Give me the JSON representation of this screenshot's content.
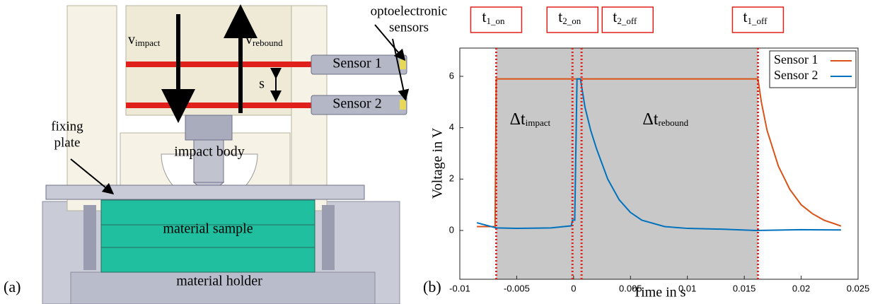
{
  "diagram": {
    "sensors_label": [
      "optoelectronic",
      "sensors"
    ],
    "v_impact": {
      "main": "v",
      "sub": "impact"
    },
    "v_rebound": {
      "main": "v",
      "sub": "rebound"
    },
    "sensor_1": "Sensor 1",
    "sensor_2": "Sensor 2",
    "distance": "s",
    "fixing_plate": [
      "fixing",
      "plate"
    ],
    "impact_body": "impact body",
    "material_sample": "material sample",
    "material_holder": "material holder",
    "panel_a": "(a)",
    "panel_b": "(b)"
  },
  "chart_data": {
    "type": "line",
    "x_label": "Time in s",
    "y_label": "Voltage in V",
    "xlim": [
      -0.01,
      0.025
    ],
    "xticks": [
      -0.01,
      -0.005,
      0,
      0.005,
      0.01,
      0.015,
      0.02,
      0.025
    ],
    "ylim": [
      -1.9,
      7.1
    ],
    "yticks": [
      0,
      2,
      4,
      6
    ],
    "legend": "top-right",
    "grid": false,
    "events": [
      {
        "label": {
          "main": "t",
          "sub": "1_on"
        },
        "x": -0.0068
      },
      {
        "label": {
          "main": "t",
          "sub": "2_on"
        },
        "x": -0.0001
      },
      {
        "label": {
          "main": "t",
          "sub": "2_off"
        },
        "x": 0.0007
      },
      {
        "label": {
          "main": "t",
          "sub": "1_off"
        },
        "x": 0.0162
      }
    ],
    "annotations": [
      {
        "main": "Δt",
        "sub": "impact"
      },
      {
        "main": "Δt",
        "sub": "rebound"
      }
    ],
    "series": [
      {
        "name": "Sensor 1",
        "color": "#d95319",
        "x": [
          -0.0085,
          -0.0069,
          -0.0068,
          0.0162,
          0.0165,
          0.017,
          0.018,
          0.019,
          0.02,
          0.021,
          0.022,
          0.023,
          0.0235
        ],
        "values": [
          0.15,
          0.15,
          5.9,
          5.9,
          5.0,
          3.9,
          2.5,
          1.6,
          1.0,
          0.65,
          0.4,
          0.25,
          0.17
        ]
      },
      {
        "name": "Sensor 2",
        "color": "#0072bd",
        "x": [
          -0.0085,
          -0.0068,
          -0.005,
          -0.002,
          -0.0002,
          -0.0001,
          0.0001,
          0.0003,
          0.0006,
          0.001,
          0.0015,
          0.002,
          0.003,
          0.004,
          0.005,
          0.006,
          0.008,
          0.01,
          0.013,
          0.016,
          0.02,
          0.0235
        ],
        "values": [
          0.3,
          0.1,
          0.08,
          0.1,
          0.18,
          0.4,
          0.4,
          5.9,
          5.9,
          4.8,
          3.9,
          3.2,
          2.0,
          1.2,
          0.7,
          0.4,
          0.15,
          0.08,
          0.05,
          0.0,
          0.03,
          0.02
        ]
      }
    ]
  }
}
